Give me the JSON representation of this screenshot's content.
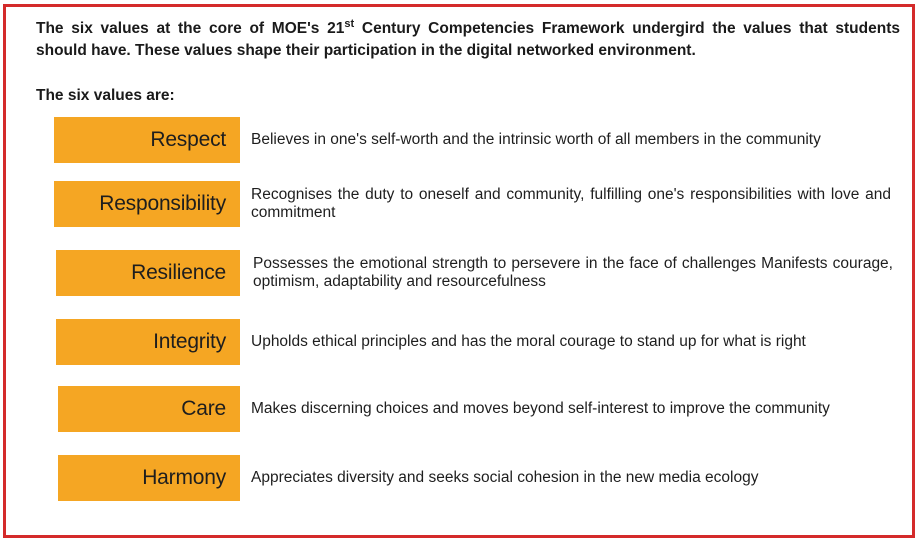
{
  "intro": {
    "part1": "The six values at the core of MOE's 21",
    "superscript": "st",
    "part2": " Century Competencies Framework undergird the values that students should have. These values shape their participation in the digital networked environment."
  },
  "list_heading": "The six values are:",
  "values": [
    {
      "name": "Respect",
      "description": "Believes in one's self-worth and the intrinsic worth of all members in the  community"
    },
    {
      "name": "Responsibility",
      "description": "Recognises the duty to oneself and community, fulfilling one's responsibilities with love and commitment"
    },
    {
      "name": "Resilience",
      "description": "Possesses the emotional strength to persevere in the face of challenges Manifests courage, optimism, adaptability and resourcefulness"
    },
    {
      "name": "Integrity",
      "description": "Upholds ethical principles and has the moral courage to stand up for what is right"
    },
    {
      "name": "Care",
      "description": "Makes discerning choices and moves beyond self-interest to improve the community"
    },
    {
      "name": "Harmony",
      "description": "Appreciates diversity and seeks social cohesion in the new media ecology"
    }
  ],
  "colors": {
    "border": "#d42a2a",
    "value_box": "#f5a623"
  }
}
